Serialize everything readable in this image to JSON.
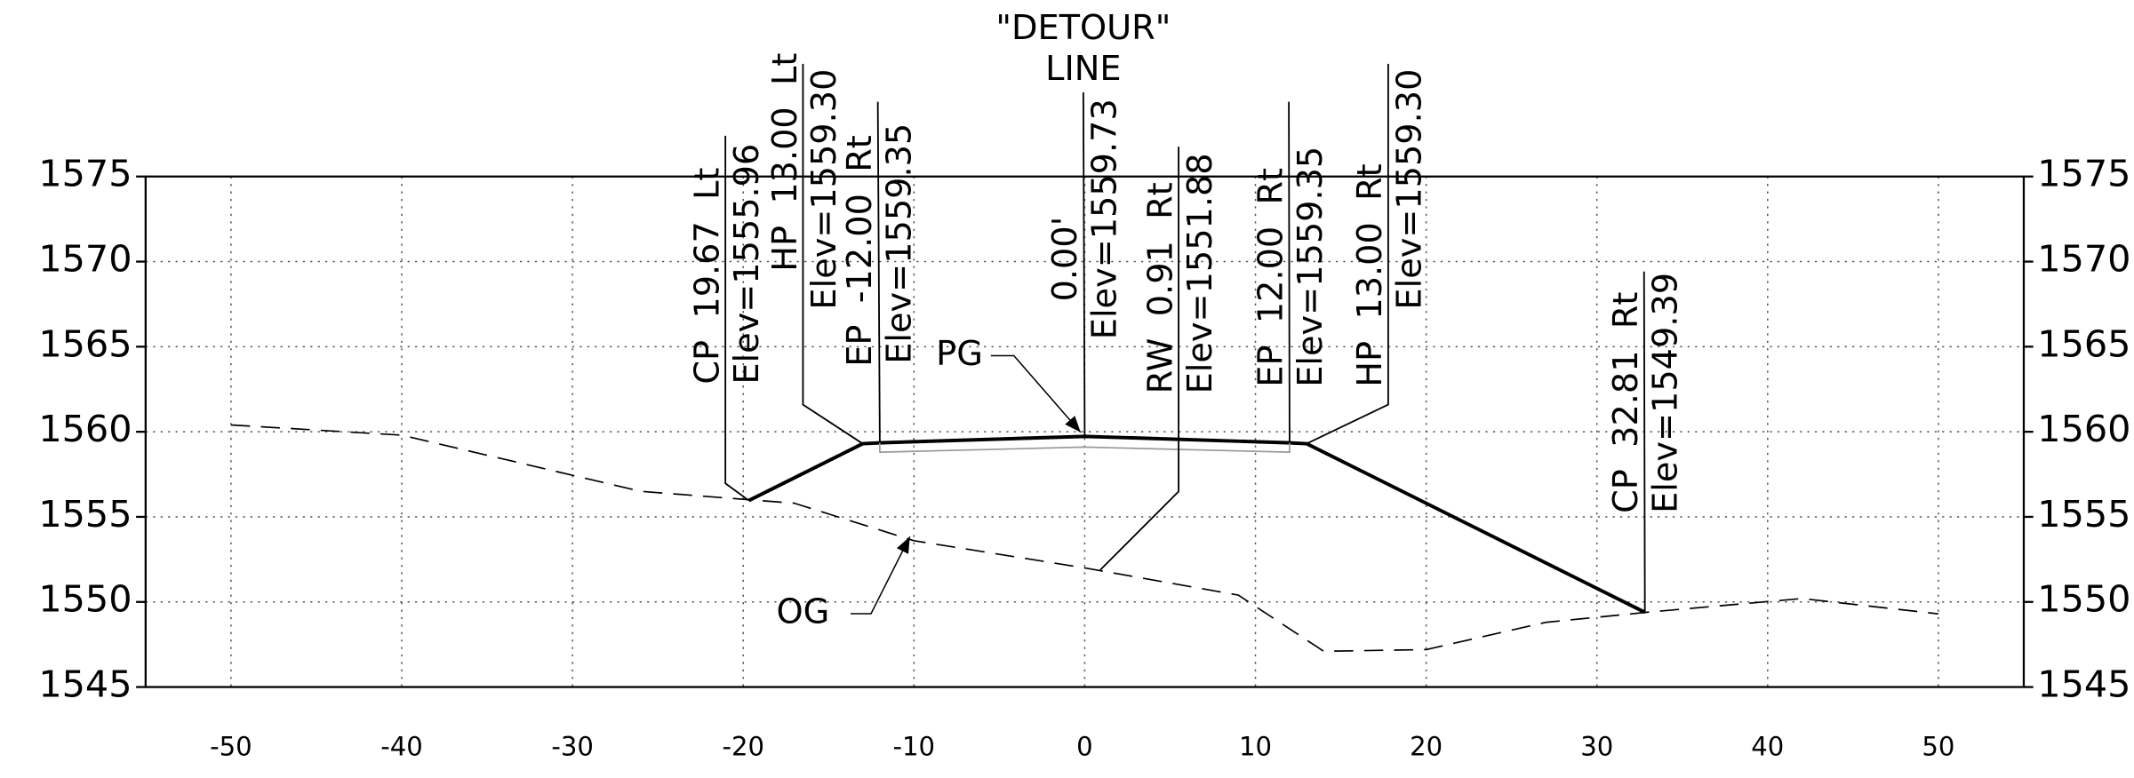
{
  "chart_data": {
    "type": "line",
    "title": [
      "\"DETOUR\"",
      "LINE"
    ],
    "xlim": [
      -55,
      55
    ],
    "xticks": [
      -50,
      -40,
      -30,
      -20,
      -10,
      0,
      10,
      20,
      30,
      40,
      50
    ],
    "ylim": [
      1545,
      1575
    ],
    "yticks": [
      1545,
      1550,
      1555,
      1560,
      1565,
      1570,
      1575
    ],
    "grid": true,
    "series": [
      {
        "name": "OG",
        "color": "#000000",
        "dashed": true,
        "x": [
          -50,
          -40,
          -26,
          -17,
          -10,
          0,
          9,
          14,
          20,
          27,
          33,
          42,
          50
        ],
        "values": [
          1560.4,
          1559.8,
          1556.5,
          1555.8,
          1553.6,
          1552.0,
          1550.4,
          1547.1,
          1547.2,
          1548.8,
          1549.4,
          1550.2,
          1549.3
        ]
      },
      {
        "name": "PG",
        "color": "#000000",
        "bold": true,
        "x": [
          -19.67,
          -13,
          -12,
          0,
          12,
          13,
          32.81
        ],
        "values": [
          1555.96,
          1559.3,
          1559.35,
          1559.73,
          1559.35,
          1559.3,
          1549.39
        ]
      },
      {
        "color": "#999999",
        "x": [
          -12,
          -12,
          0,
          12,
          12
        ],
        "values": [
          1559.35,
          1558.8,
          1559.1,
          1558.8,
          1559.35
        ]
      }
    ],
    "annotations": [
      {
        "x": -19.67,
        "y": 1555.96,
        "lines": [
          "CP  19.67  Lt",
          "Elev=1555.96"
        ]
      },
      {
        "x": -13,
        "y": 1559.3,
        "lines": [
          "HP  13.00  Lt",
          "Elev=1559.30"
        ]
      },
      {
        "x": -12,
        "y": 1559.35,
        "lines": [
          "EP  -12.00  Rt",
          "Elev=1559.35"
        ]
      },
      {
        "x": 0,
        "y": 1559.73,
        "lines": [
          "0.00'",
          "Elev=1559.73"
        ]
      },
      {
        "x": 0.91,
        "y": 1551.88,
        "lines": [
          "RW  0.91  Rt",
          "Elev=1551.88"
        ]
      },
      {
        "x": 12,
        "y": 1559.35,
        "lines": [
          "EP  12.00  Rt",
          "Elev=1559.35"
        ]
      },
      {
        "x": 13,
        "y": 1559.3,
        "lines": [
          "HP  13.00  Rt",
          "Elev=1559.30"
        ]
      },
      {
        "x": 32.81,
        "y": 1549.39,
        "lines": [
          "CP  32.81  Rt",
          "Elev=1549.39"
        ]
      }
    ]
  }
}
